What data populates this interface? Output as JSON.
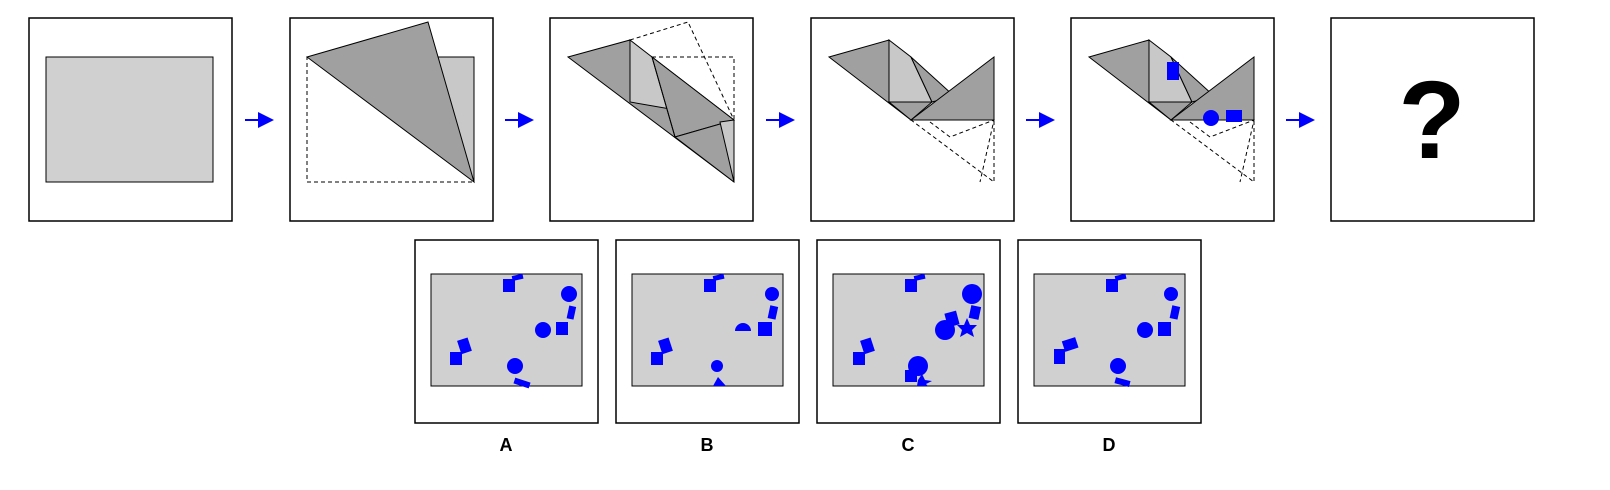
{
  "puzzle": {
    "question_mark": "?",
    "options": [
      {
        "id": "A",
        "label": "A"
      },
      {
        "id": "B",
        "label": "B"
      },
      {
        "id": "C",
        "label": "C"
      },
      {
        "id": "D",
        "label": "D"
      }
    ]
  },
  "colors": {
    "paper_light": "#d0d0d0",
    "paper_mid": "#c8c8c8",
    "paper_dark": "#a0a0a0",
    "punch_blue": "#0000ff",
    "arrow_blue": "#0000ff",
    "outline": "#000000"
  }
}
